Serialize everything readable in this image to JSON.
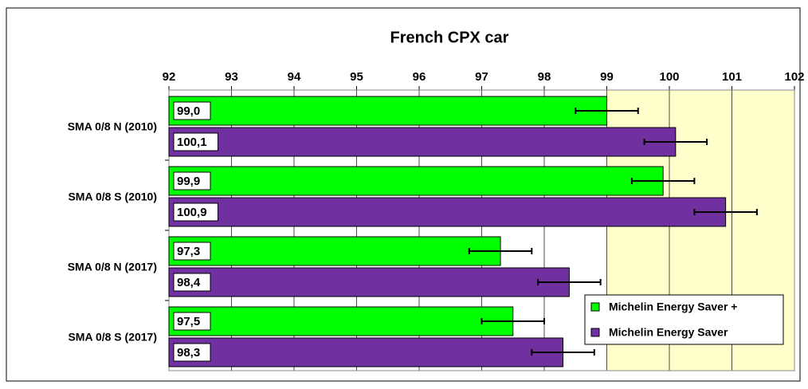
{
  "chart_data": {
    "type": "hbar",
    "title": "French CPX car",
    "categories": [
      "SMA 0/8 N (2010)",
      "SMA 0/8 S (2010)",
      "SMA 0/8 N (2017)",
      "SMA 0/8 S (2017)"
    ],
    "series": [
      {
        "name": "Michelin Energy Saver +",
        "color": "#00ff00",
        "values": [
          99.0,
          99.9,
          97.3,
          97.5
        ],
        "value_labels": [
          "99,0",
          "99,9",
          "97,3",
          "97,5"
        ],
        "errors": [
          0.5,
          0.5,
          0.5,
          0.5
        ]
      },
      {
        "name": "Michelin Energy Saver",
        "color": "#7030a0",
        "values": [
          100.1,
          100.9,
          98.4,
          98.3
        ],
        "value_labels": [
          "100,1",
          "100,9",
          "98,4",
          "98,3"
        ],
        "errors": [
          0.5,
          0.5,
          0.5,
          0.5
        ]
      }
    ],
    "xlim": [
      92,
      102
    ],
    "xticks": [
      92,
      93,
      94,
      95,
      96,
      97,
      98,
      99,
      100,
      101,
      102
    ],
    "shaded_region": {
      "from": 99,
      "to": 102,
      "color": "#ffffcc"
    },
    "grid": true,
    "legend": "lower-right"
  }
}
